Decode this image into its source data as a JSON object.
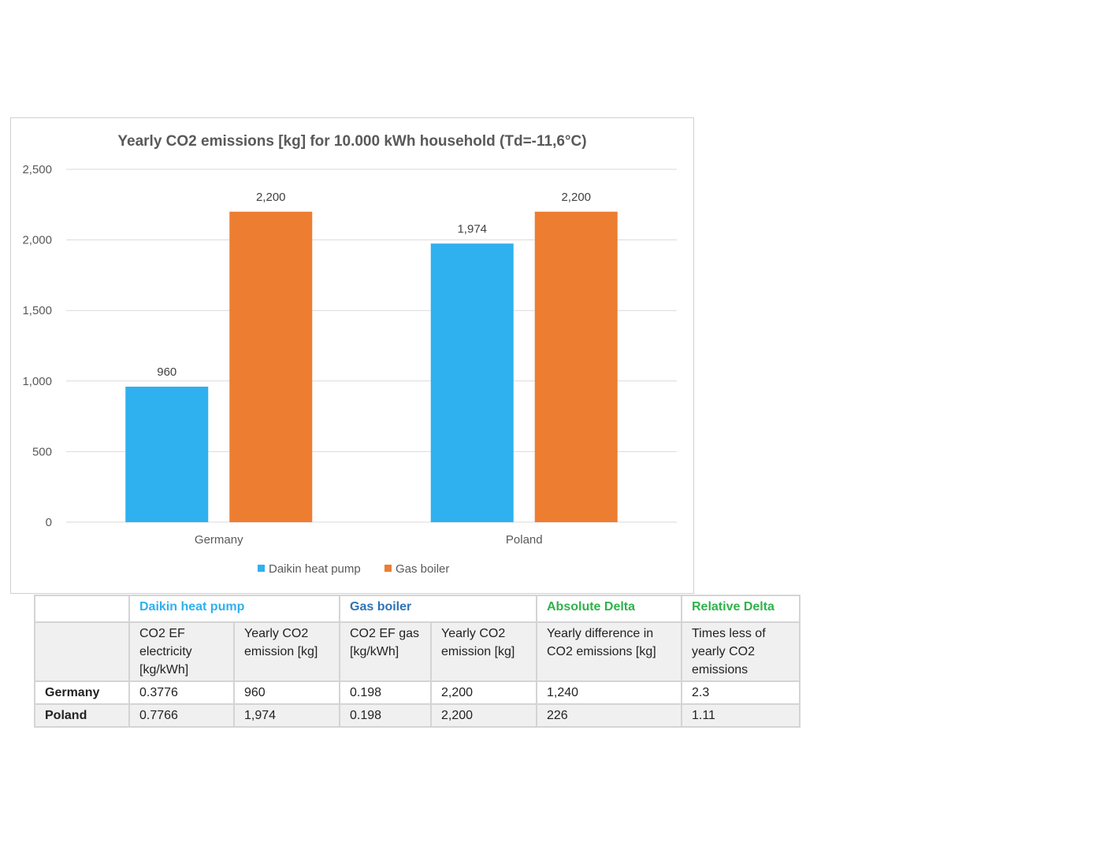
{
  "chart_data": {
    "type": "bar",
    "title": "Yearly CO2 emissions [kg] for 10.000 kWh household (Td=-11,6°C)",
    "categories": [
      "Germany",
      "Poland"
    ],
    "series": [
      {
        "name": "Daikin heat pump",
        "values": [
          960,
          1974
        ],
        "labels": [
          "960",
          "1,974"
        ],
        "color": "#2fb0ef"
      },
      {
        "name": "Gas boiler",
        "values": [
          2200,
          2200
        ],
        "labels": [
          "2,200",
          "2,200"
        ],
        "color": "#ed7d31"
      }
    ],
    "ylim": [
      0,
      2500
    ],
    "yticks": [
      0,
      500,
      1000,
      1500,
      2000,
      2500
    ],
    "ytick_labels": [
      "0",
      "500",
      "1,000",
      "1,500",
      "2,000",
      "2,500"
    ],
    "grid": true,
    "legend": "bottom",
    "xlabel": "",
    "ylabel": ""
  },
  "table": {
    "headers": [
      "",
      "Daikin heat pump",
      "Gas boiler",
      "Absolute Delta",
      "Relative Delta"
    ],
    "header_colors": [
      "#000",
      "#2fb0ef",
      "#2e74b5",
      "#2eb34a",
      "#2eb34a"
    ],
    "subheaders": [
      "",
      "CO2 EF electricity [kg/kWh]",
      "Yearly CO2 emission [kg]",
      "CO2 EF gas [kg/kWh]",
      "Yearly CO2 emission [kg]",
      "Yearly difference in CO2 emissions [kg]",
      "Times less of yearly CO2 emissions"
    ],
    "rows": [
      [
        "Germany",
        "0.3776",
        "960",
        "0.198",
        "2,200",
        "1,240",
        "2.3"
      ],
      [
        "Poland",
        "0.7766",
        "1,974",
        "0.198",
        "2,200",
        "226",
        "1.11"
      ]
    ]
  }
}
